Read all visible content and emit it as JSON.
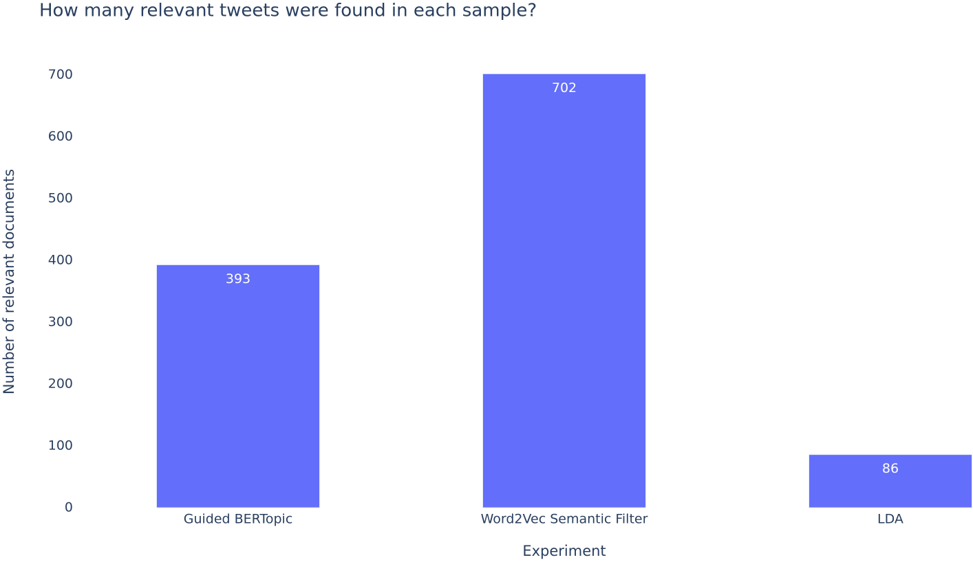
{
  "chart_data": {
    "type": "bar",
    "title": "How many relevant tweets were found in each sample?",
    "x_label": "Experiment",
    "y_label": "Number of relevant documents",
    "categories": [
      "Guided BERTopic",
      "Word2Vec Semantic Filter",
      "LDA"
    ],
    "values": [
      393,
      702,
      86
    ],
    "color": "#636efa",
    "ylim": [
      0,
      738
    ],
    "yticks": [
      0,
      100,
      200,
      300,
      400,
      500,
      600,
      700
    ],
    "grid": false
  }
}
